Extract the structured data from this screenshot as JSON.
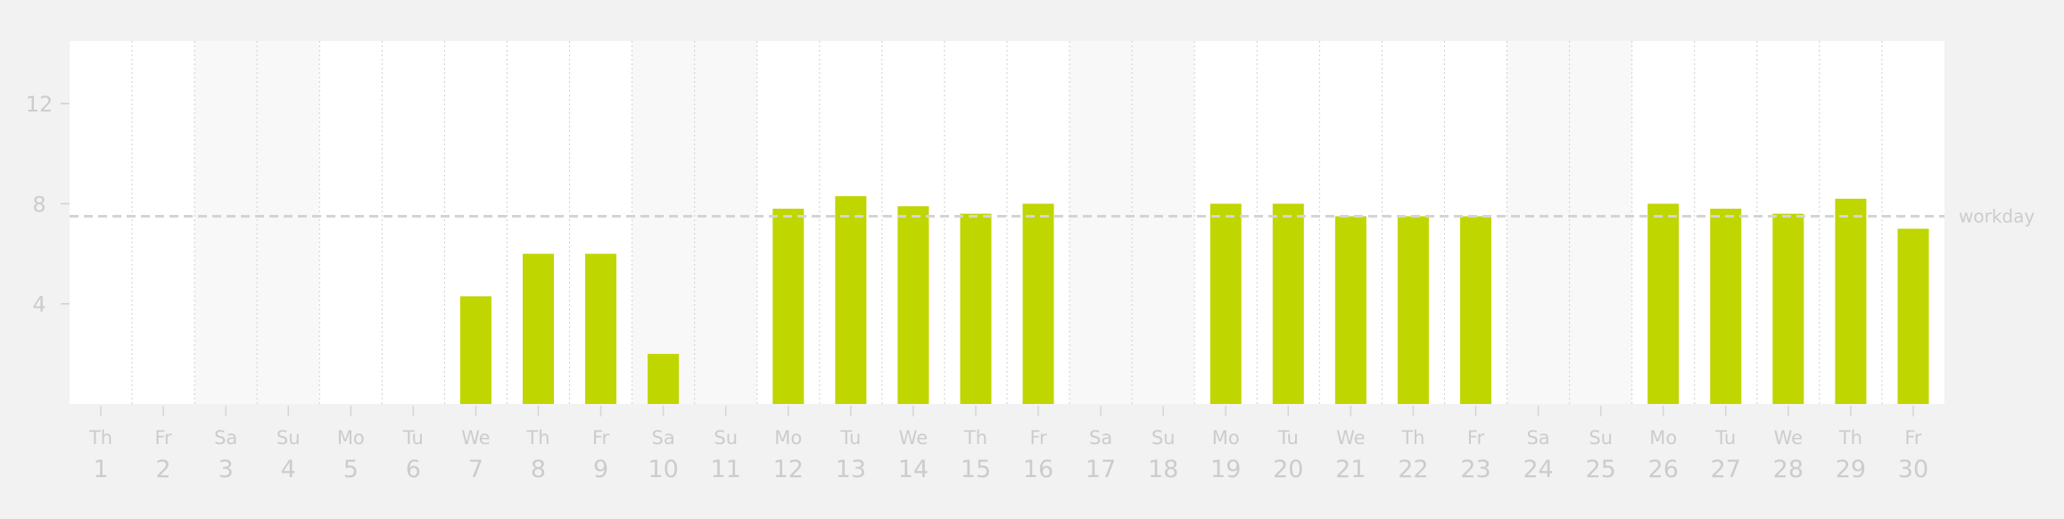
{
  "chart_data": {
    "type": "bar",
    "categories": [
      "1",
      "2",
      "3",
      "4",
      "5",
      "6",
      "7",
      "8",
      "9",
      "10",
      "11",
      "12",
      "13",
      "14",
      "15",
      "16",
      "17",
      "18",
      "19",
      "20",
      "21",
      "22",
      "23",
      "24",
      "25",
      "26",
      "27",
      "28",
      "29",
      "30"
    ],
    "weekdays": [
      "Th",
      "Fr",
      "Sa",
      "Su",
      "Mo",
      "Tu",
      "We",
      "Th",
      "Fr",
      "Sa",
      "Su",
      "Mo",
      "Tu",
      "We",
      "Th",
      "Fr",
      "Sa",
      "Su",
      "Mo",
      "Tu",
      "We",
      "Th",
      "Fr",
      "Sa",
      "Su",
      "Mo",
      "Tu",
      "We",
      "Th",
      "Fr"
    ],
    "weekend_days": [
      "3",
      "4",
      "10",
      "11",
      "17",
      "18",
      "24",
      "25"
    ],
    "values": [
      0,
      0,
      0,
      0,
      0,
      0,
      4.3,
      6,
      6,
      2,
      0,
      7.8,
      8.3,
      7.9,
      7.6,
      8,
      0,
      0,
      8,
      8,
      7.5,
      7.5,
      7.5,
      0,
      0,
      8,
      7.8,
      7.6,
      8.2,
      7
    ],
    "ylim": [
      0,
      14.5
    ],
    "yticks": [
      "4",
      "8",
      "12"
    ],
    "reference_line": {
      "label": "workday",
      "value": 7.5
    },
    "colors": {
      "bar": "#bfd600",
      "weekend": "#f8f8f8",
      "plot": "#ffffff",
      "background": "#f2f2f2",
      "text": "#cccccc"
    }
  }
}
